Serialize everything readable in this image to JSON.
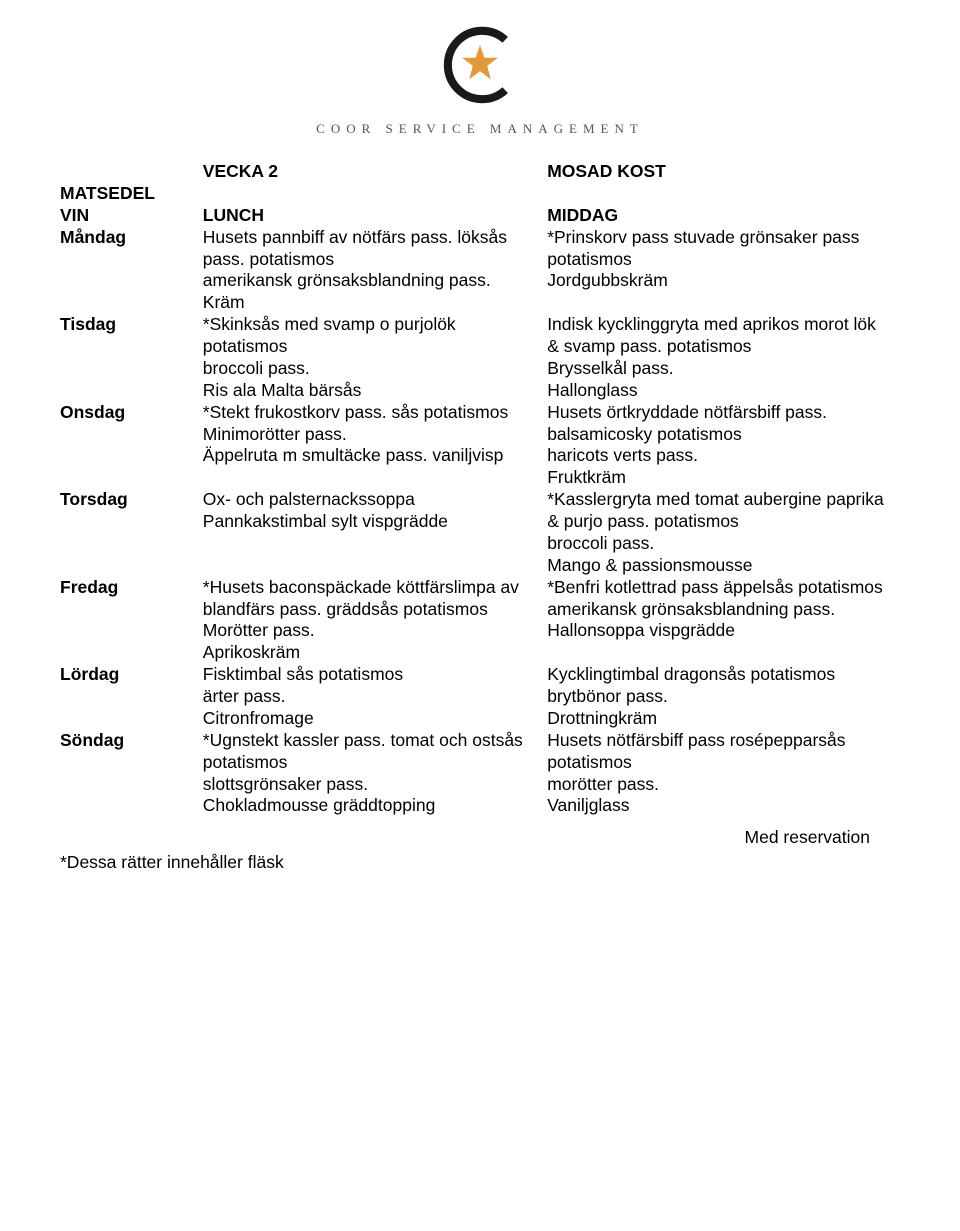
{
  "logo": {
    "company_name": "COOR SERVICE MANAGEMENT",
    "c_stroke": "#1a1a1a",
    "star_fill": "#e09a3a"
  },
  "header": {
    "col1_row1": "",
    "col2_row1": "VECKA 2",
    "col3_row1": "MOSAD KOST",
    "col1_row2": "MATSEDEL",
    "col2_row2": "",
    "col3_row2": "",
    "col1_row3": "VIN",
    "col2_row3": "LUNCH",
    "col3_row3": "MIDDAG"
  },
  "days": {
    "mon": {
      "label": "Måndag",
      "lunch": "Husets pannbiff av nötfärs pass. löksås pass. potatismos\namerikansk grönsaksblandning pass.\nKräm",
      "dinner": "*Prinskorv pass stuvade grönsaker pass potatismos\nJordgubbskräm"
    },
    "tue": {
      "label": "Tisdag",
      "lunch": "*Skinksås med svamp o purjolök potatismos\nbroccoli pass.\nRis ala Malta bärsås",
      "dinner": "Indisk kycklinggryta med aprikos morot lök & svamp pass. potatismos\nBrysselkål pass.\nHallonglass"
    },
    "wed": {
      "label": "Onsdag",
      "lunch": "*Stekt frukostkorv pass. sås potatismos\nMinimorötter pass.\nÄppelruta m smultäcke pass. vaniljvisp",
      "dinner": "Husets örtkryddade nötfärsbiff pass. balsamicosky potatismos\nharicots verts pass.\nFruktkräm"
    },
    "thu": {
      "label": "Torsdag",
      "lunch": "Ox- och palsternackssoppa\nPannkakstimbal sylt vispgrädde",
      "dinner": "*Kasslergryta med tomat aubergine paprika & purjo pass. potatismos\nbroccoli pass.\nMango & passionsmousse"
    },
    "fri": {
      "label": "Fredag",
      "lunch": "*Husets baconspäckade köttfärslimpa av blandfärs pass. gräddsås potatismos\nMorötter pass.\nAprikoskräm",
      "dinner": "*Benfri kotlettrad pass äppelsås potatismos amerikansk grönsaksblandning pass.\nHallonsoppa vispgrädde"
    },
    "sat": {
      "label": "Lördag",
      "lunch": "Fisktimbal sås potatismos\närter pass.\nCitronfromage",
      "dinner": "Kycklingtimbal dragonsås potatismos brytbönor pass.\nDrottningkräm"
    },
    "sun": {
      "label": "Söndag",
      "lunch": "*Ugnstekt kassler pass. tomat och ostsås potatismos\nslottsgrönsaker  pass.\nChokladmousse gräddtopping",
      "dinner": "Husets nötfärsbiff pass rosépepparsås potatismos\nmorötter pass.\nVaniljglass"
    }
  },
  "footer": {
    "right": "Med reservation",
    "left": "*Dessa rätter innehåller fläsk"
  }
}
